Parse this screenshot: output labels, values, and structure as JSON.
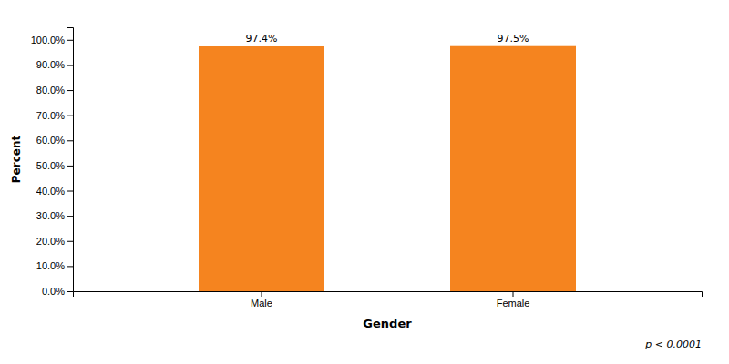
{
  "chart_data": {
    "type": "bar",
    "categories": [
      "Male",
      "Female"
    ],
    "values": [
      97.4,
      97.5
    ],
    "value_labels": [
      "97.4%",
      "97.5%"
    ],
    "color": "#F5841F",
    "xlabel": "Gender",
    "ylabel": "Percent",
    "ylim": [
      0,
      105
    ],
    "yticks": [
      {
        "value": 0,
        "label": "0.0%"
      },
      {
        "value": 10,
        "label": "10.0%"
      },
      {
        "value": 20,
        "label": "20.0%"
      },
      {
        "value": 30,
        "label": "30.0%"
      },
      {
        "value": 40,
        "label": "40.0%"
      },
      {
        "value": 50,
        "label": "50.0%"
      },
      {
        "value": 60,
        "label": "60.0%"
      },
      {
        "value": 70,
        "label": "70.0%"
      },
      {
        "value": 80,
        "label": "80.0%"
      },
      {
        "value": 90,
        "label": "90.0%"
      },
      {
        "value": 100,
        "label": "100.0%"
      }
    ],
    "data_labels": true,
    "grid": false,
    "annotations": [
      "p < 0.0001"
    ]
  }
}
